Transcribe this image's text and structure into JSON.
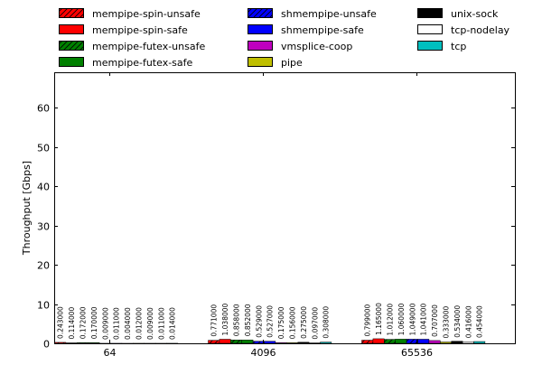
{
  "chart_data": {
    "type": "bar",
    "title": "",
    "xlabel": "",
    "ylabel": "Throughput [Gbps]",
    "ylim": [
      0,
      69
    ],
    "yticks": [
      0,
      10,
      20,
      30,
      40,
      50,
      60
    ],
    "grid": false,
    "legend_placement": "top, above plot, 3 columns",
    "categories": [
      "64",
      "4096",
      "65536"
    ],
    "series": [
      {
        "name": "mempipe-spin-unsafe",
        "color": "#ff0000",
        "hatch": true,
        "values": [
          0.243,
          0.771,
          0.799
        ],
        "labels": [
          "0.243000",
          "0.771000",
          "0.799000"
        ]
      },
      {
        "name": "mempipe-spin-safe",
        "color": "#ff0000",
        "hatch": false,
        "values": [
          0.114,
          1.038,
          1.165
        ],
        "labels": [
          "0.114000",
          "1.038000",
          "1.165000"
        ]
      },
      {
        "name": "mempipe-futex-unsafe",
        "color": "#008000",
        "hatch": true,
        "values": [
          0.172,
          0.858,
          1.012
        ],
        "labels": [
          "0.172000",
          "0.858000",
          "1.012000"
        ]
      },
      {
        "name": "mempipe-futex-safe",
        "color": "#008000",
        "hatch": false,
        "values": [
          0.17,
          0.852,
          1.06
        ],
        "labels": [
          "0.170000",
          "0.852000",
          "1.060000"
        ]
      },
      {
        "name": "shmempipe-unsafe",
        "color": "#0000ff",
        "hatch": true,
        "values": [
          0.009,
          0.529,
          1.049
        ],
        "labels": [
          "0.009000",
          "0.529000",
          "1.049000"
        ]
      },
      {
        "name": "shmempipe-safe",
        "color": "#0000ff",
        "hatch": false,
        "values": [
          0.011,
          0.527,
          1.041
        ],
        "labels": [
          "0.011000",
          "0.527000",
          "1.041000"
        ]
      },
      {
        "name": "vmsplice-coop",
        "color": "#bf00bf",
        "hatch": false,
        "values": [
          0.004,
          0.175,
          0.707
        ],
        "labels": [
          "0.004000",
          "0.175000",
          "0.707000"
        ]
      },
      {
        "name": "pipe",
        "color": "#bfbf00",
        "hatch": false,
        "values": [
          0.012,
          0.156,
          0.333
        ],
        "labels": [
          "0.012000",
          "0.156000",
          "0.333000"
        ]
      },
      {
        "name": "unix-sock",
        "color": "#000000",
        "hatch": false,
        "values": [
          0.009,
          0.275,
          0.534
        ],
        "labels": [
          "0.009000",
          "0.275000",
          "0.534000"
        ]
      },
      {
        "name": "tcp-nodelay",
        "color": "#ffffff",
        "hatch": false,
        "values": [
          0.011,
          0.097,
          0.416
        ],
        "labels": [
          "0.011000",
          "0.097000",
          "0.416000"
        ]
      },
      {
        "name": "tcp",
        "color": "#00bfbf",
        "hatch": false,
        "values": [
          0.014,
          0.308,
          0.454
        ],
        "labels": [
          "0.014000",
          "0.308000",
          "0.454000"
        ]
      }
    ]
  }
}
